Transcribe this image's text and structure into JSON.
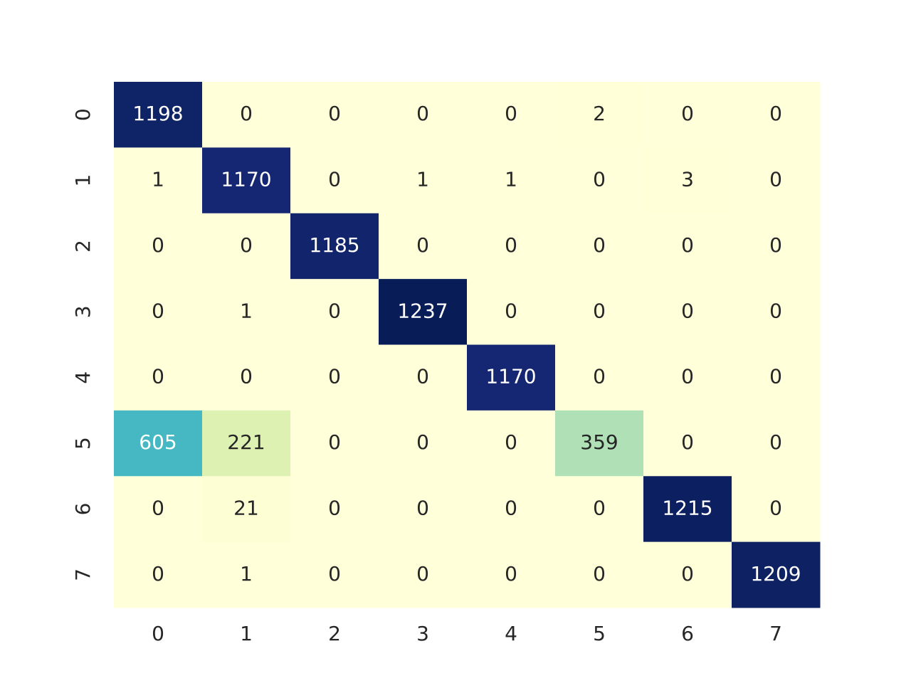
{
  "chart_data": {
    "type": "heatmap",
    "x_categories": [
      "0",
      "1",
      "2",
      "3",
      "4",
      "5",
      "6",
      "7"
    ],
    "y_categories": [
      "0",
      "1",
      "2",
      "3",
      "4",
      "5",
      "6",
      "7"
    ],
    "values": [
      [
        1198,
        0,
        0,
        0,
        0,
        2,
        0,
        0
      ],
      [
        1,
        1170,
        0,
        1,
        1,
        0,
        3,
        0
      ],
      [
        0,
        0,
        1185,
        0,
        0,
        0,
        0,
        0
      ],
      [
        0,
        1,
        0,
        1237,
        0,
        0,
        0,
        0
      ],
      [
        0,
        0,
        0,
        0,
        1170,
        0,
        0,
        0
      ],
      [
        605,
        221,
        0,
        0,
        0,
        359,
        0,
        0
      ],
      [
        0,
        21,
        0,
        0,
        0,
        0,
        1215,
        0
      ],
      [
        0,
        1,
        0,
        0,
        0,
        0,
        0,
        1209
      ]
    ],
    "colormap": "YlGnBu"
  }
}
